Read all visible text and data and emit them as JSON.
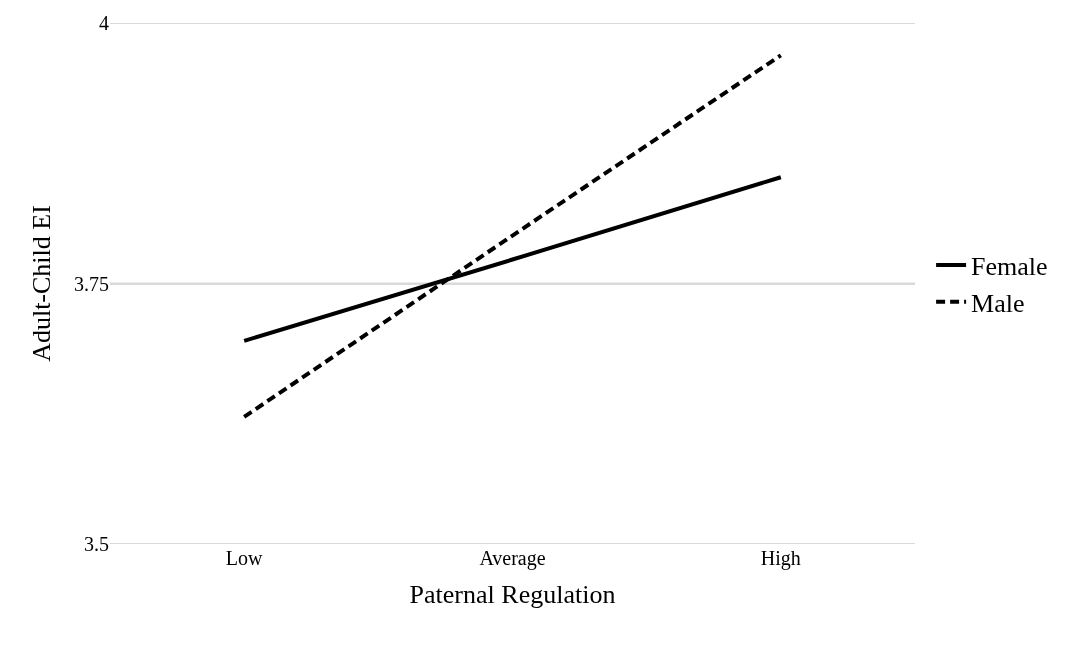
{
  "chart_data": {
    "type": "line",
    "xlabel": "Paternal Regulation",
    "ylabel": "Adult-Child EI",
    "categories": [
      "Low",
      "Average",
      "High"
    ],
    "series": [
      {
        "name": "Female",
        "color": "#000000",
        "values": [
          3.695,
          3.773,
          3.852
        ],
        "line_style": "solid"
      },
      {
        "name": "Male",
        "color": "#000000",
        "values": [
          3.622,
          3.796,
          3.969
        ],
        "line_style": "dashed"
      }
    ],
    "ylim": [
      3.5,
      4
    ],
    "yticks": [
      3.5,
      3.75,
      4
    ],
    "grid": "y",
    "legend": "right",
    "marker": "none"
  }
}
